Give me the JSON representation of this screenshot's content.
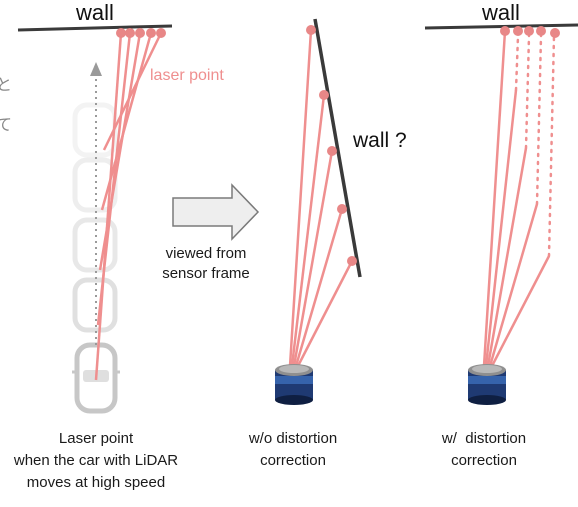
{
  "labels": {
    "wall_left": "wall",
    "wall_right": "wall",
    "wall_question": "wall ?",
    "laser_point": "laser point",
    "viewed_from": [
      "viewed from",
      "sensor frame"
    ],
    "caption_left": [
      "Laser point",
      "when the car with LiDAR",
      "moves at high speed"
    ],
    "caption_middle": [
      "w/o distortion",
      "correction"
    ],
    "caption_right": [
      "w/  distortion",
      "correction"
    ]
  },
  "colors": {
    "laser": "#ef8f8f",
    "laser_point": "#e88787",
    "wall": "#3a3a3a",
    "car": "#bfbfbf",
    "arrow_fill": "#eeeeee",
    "lidar_body": "#1f3a73"
  }
}
